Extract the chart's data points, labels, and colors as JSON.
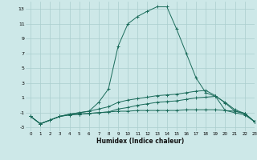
{
  "xlabel": "Humidex (Indice chaleur)",
  "background_color": "#cde8e8",
  "grid_color": "#aacece",
  "line_color": "#1a6b5a",
  "xlim": [
    -0.5,
    23
  ],
  "ylim": [
    -3.5,
    14
  ],
  "yticks": [
    -3,
    -1,
    1,
    3,
    5,
    7,
    9,
    11,
    13
  ],
  "xticks": [
    0,
    1,
    2,
    3,
    4,
    5,
    6,
    7,
    8,
    9,
    10,
    11,
    12,
    13,
    14,
    15,
    16,
    17,
    18,
    19,
    20,
    21,
    22,
    23
  ],
  "series": [
    {
      "x": [
        0,
        1,
        2,
        3,
        4,
        5,
        6,
        7,
        8,
        9,
        10,
        11,
        12,
        13,
        14,
        15,
        16,
        17,
        18,
        19,
        20,
        21,
        22,
        23
      ],
      "y": [
        -1.5,
        -2.5,
        -2.0,
        -1.5,
        -1.3,
        -1.2,
        -1.1,
        -1.0,
        -0.9,
        -0.8,
        -0.8,
        -0.7,
        -0.7,
        -0.7,
        -0.7,
        -0.7,
        -0.6,
        -0.6,
        -0.6,
        -0.6,
        -0.7,
        -0.8,
        -1.1,
        -2.2
      ]
    },
    {
      "x": [
        0,
        1,
        2,
        3,
        4,
        5,
        6,
        7,
        8,
        9,
        10,
        11,
        12,
        13,
        14,
        15,
        16,
        17,
        18,
        19,
        20,
        21,
        22,
        23
      ],
      "y": [
        -1.5,
        -2.5,
        -2.0,
        -1.5,
        -1.3,
        -1.2,
        -1.1,
        -1.0,
        -0.9,
        -0.5,
        -0.3,
        0.0,
        0.2,
        0.4,
        0.5,
        0.6,
        0.8,
        1.0,
        1.1,
        1.2,
        0.4,
        -0.6,
        -1.1,
        -2.2
      ]
    },
    {
      "x": [
        0,
        1,
        2,
        3,
        4,
        5,
        6,
        7,
        8,
        9,
        10,
        11,
        12,
        13,
        14,
        15,
        16,
        17,
        18,
        19,
        20,
        21,
        22,
        23
      ],
      "y": [
        -1.5,
        -2.5,
        -2.0,
        -1.5,
        -1.2,
        -1.0,
        -0.8,
        -0.5,
        -0.2,
        0.4,
        0.7,
        0.9,
        1.1,
        1.3,
        1.4,
        1.5,
        1.7,
        1.9,
        2.0,
        1.3,
        0.3,
        -0.8,
        -1.1,
        -2.2
      ]
    },
    {
      "x": [
        0,
        1,
        2,
        3,
        4,
        5,
        6,
        7,
        8,
        9,
        10,
        11,
        12,
        13,
        14,
        15,
        16,
        17,
        18,
        19,
        20,
        21,
        22,
        23
      ],
      "y": [
        -1.5,
        -2.5,
        -2.0,
        -1.5,
        -1.2,
        -1.0,
        -0.8,
        0.4,
        2.2,
        8.0,
        11.0,
        12.0,
        12.7,
        13.3,
        13.3,
        10.3,
        7.0,
        3.7,
        1.7,
        1.2,
        -0.7,
        -1.0,
        -1.3,
        -2.2
      ]
    }
  ]
}
